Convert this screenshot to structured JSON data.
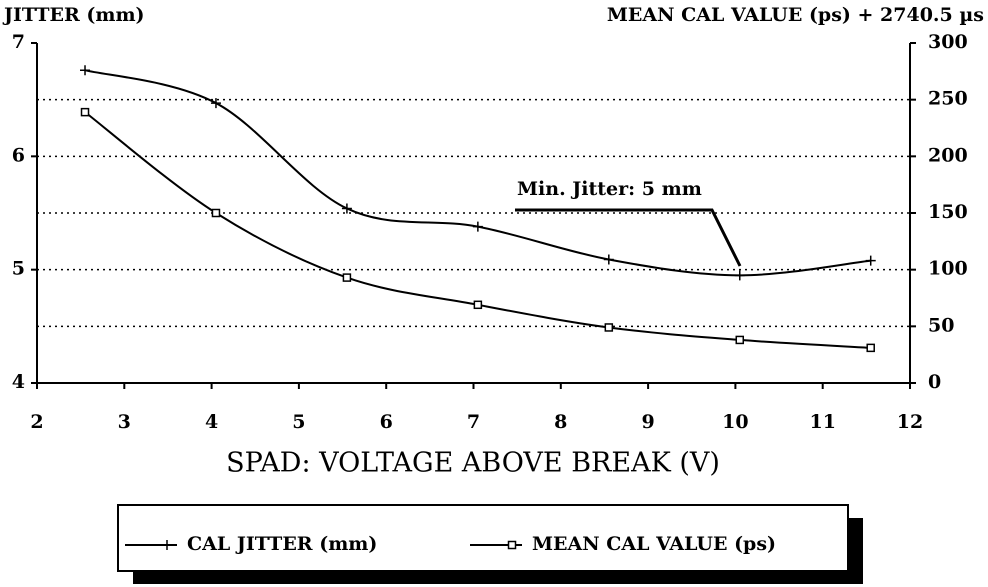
{
  "chart_data": {
    "type": "line",
    "y_label": "JITTER (mm)",
    "y2_label": "MEAN CAL VALUE (ps) + 2740.5 µs",
    "x_label": "SPAD: VOLTAGE ABOVE BREAK (V)",
    "annotation": "Min. Jitter: 5 mm",
    "x": [
      2.55,
      4.05,
      5.55,
      7.05,
      8.55,
      10.05,
      11.55
    ],
    "series": [
      {
        "name": "CAL JITTER (mm)",
        "color": "#000000",
        "marker": "plus",
        "values": [
          6.76,
          6.47,
          5.54,
          5.38,
          5.09,
          4.95,
          5.08
        ]
      },
      {
        "name": "MEAN CAL VALUE (ps)",
        "color": "#000000",
        "marker": "square",
        "axis": "y2",
        "values": [
          239,
          150,
          93,
          69,
          49,
          38,
          31
        ]
      }
    ],
    "xlim": [
      2,
      12
    ],
    "xticks": [
      2,
      3,
      4,
      5,
      6,
      7,
      8,
      9,
      10,
      11,
      12
    ],
    "ylim": [
      4,
      7
    ],
    "yticks": [
      4,
      5,
      6,
      7
    ],
    "y2lim": [
      0,
      300
    ],
    "y2ticks": [
      0,
      50,
      100,
      150,
      200,
      250,
      300
    ],
    "grid": true
  }
}
